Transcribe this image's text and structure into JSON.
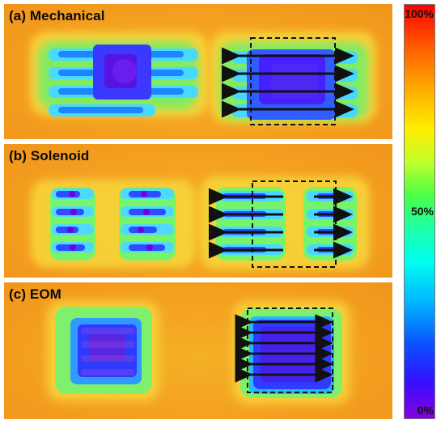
{
  "panels": [
    {
      "label": "(a) Mechanical"
    },
    {
      "label": "(b) Solenoid"
    },
    {
      "label": "(c) EOM"
    }
  ],
  "colorbar": {
    "top_label": "100%",
    "mid_label": "50%",
    "bottom_label": "0%",
    "colors": [
      "#ff0000",
      "#ffa800",
      "#ffee00",
      "#4cff45",
      "#00fff0",
      "#0a52ff",
      "#8700e0"
    ]
  }
}
